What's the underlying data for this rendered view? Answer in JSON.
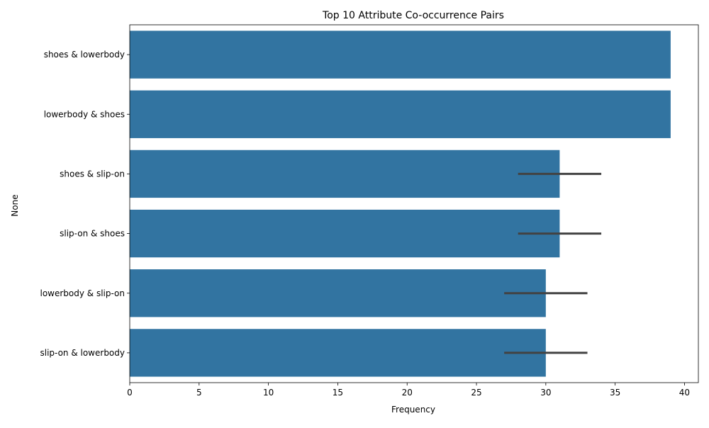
{
  "chart_data": {
    "type": "bar",
    "orientation": "horizontal",
    "title": "Top 10 Attribute Co-occurrence Pairs",
    "xlabel": "Frequency",
    "ylabel": "None",
    "categories": [
      "shoes & lowerbody",
      "lowerbody & shoes",
      "shoes & slip-on",
      "slip-on & shoes",
      "lowerbody & slip-on",
      "slip-on & lowerbody"
    ],
    "values": [
      39,
      39,
      31,
      31,
      30,
      30
    ],
    "error_bars": [
      null,
      null,
      [
        28,
        34
      ],
      [
        28,
        34
      ],
      [
        27,
        33
      ],
      [
        27,
        33
      ]
    ],
    "xlim": [
      0,
      41
    ],
    "xticks": [
      "0",
      "5",
      "10",
      "15",
      "20",
      "25",
      "30",
      "35",
      "40"
    ],
    "bar_color": "#3274a1",
    "error_color": "#424242",
    "grid": false,
    "legend": "none"
  }
}
